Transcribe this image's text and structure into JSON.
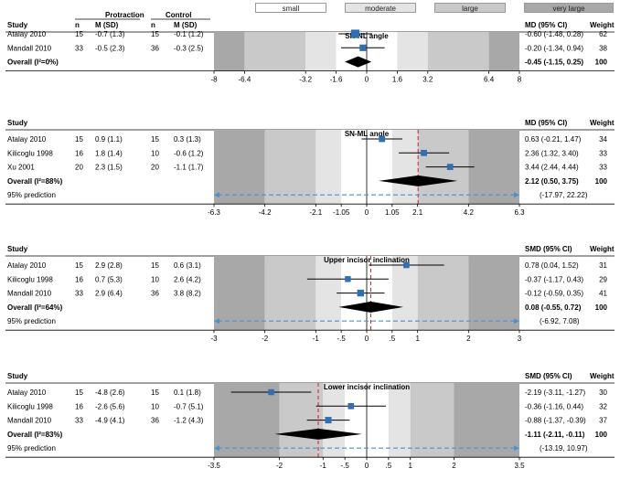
{
  "legend": {
    "items": [
      {
        "label": "small",
        "color": "#ffffff"
      },
      {
        "label": "moderate",
        "color": "#e4e4e4"
      },
      {
        "label": "large",
        "color": "#c9c9c9"
      },
      {
        "label": "very large",
        "color": "#a8a8a8"
      }
    ]
  },
  "column_headers": {
    "protraction": "Protraction",
    "control": "Control",
    "n": "n",
    "msd": "M (SD)",
    "study": "Study",
    "weight": "Weight"
  },
  "colors": {
    "marker": "#2f6fb4",
    "zero_line": "#000000",
    "pooled_line": "#d62020",
    "prediction": "#4a90d9",
    "diamond": "#000000"
  },
  "chart_data": [
    {
      "type": "forest",
      "title": "SN-NL angle",
      "effect_header": "MD (95% CI)",
      "xlim": [
        -8,
        8
      ],
      "ticks": [
        -8,
        -6.4,
        -3.2,
        -1.6,
        0,
        1.6,
        3.2,
        6.4,
        8
      ],
      "tick_labels": [
        "-8",
        "-6.4",
        "-3.2",
        "-1.6",
        "0",
        "1.6",
        "3.2",
        "6.4",
        "8"
      ],
      "zones": [
        -6.4,
        -3.2,
        -1.6,
        1.6,
        3.2,
        6.4
      ],
      "studies": [
        {
          "name": "Atalay 2010",
          "n1": "15",
          "msd1": "-0.7 (1.3)",
          "n2": "15",
          "msd2": "-0.1 (1.2)",
          "est": -0.6,
          "lo": -1.48,
          "hi": 0.28,
          "ci_text": "-0.60 (-1.48, 0.28)",
          "weight": "62"
        },
        {
          "name": "Mandall 2010",
          "n1": "33",
          "msd1": "-0.5 (2.3)",
          "n2": "36",
          "msd2": "-0.3 (2.5)",
          "est": -0.2,
          "lo": -1.34,
          "hi": 0.94,
          "ci_text": "-0.20 (-1.34, 0.94)",
          "weight": "38"
        }
      ],
      "overall": {
        "label": "Overall (I²=0%)",
        "est": -0.45,
        "lo": -1.15,
        "hi": 0.25,
        "ci_text": "-0.45 (-1.15, 0.25)",
        "weight": "100"
      }
    },
    {
      "type": "forest",
      "title": "SN-ML angle",
      "effect_header": "MD (95% CI)",
      "xlim": [
        -6.3,
        6.3
      ],
      "ticks": [
        -6.3,
        -4.2,
        -2.1,
        -1.05,
        0,
        1.05,
        2.1,
        4.2,
        6.3
      ],
      "tick_labels": [
        "-6.3",
        "-4.2",
        "-2.1",
        "-1.05",
        "0",
        "1.05",
        "2.1",
        "4.2",
        "6.3"
      ],
      "zones": [
        -4.2,
        -2.1,
        -1.05,
        1.05,
        2.1,
        4.2
      ],
      "studies": [
        {
          "name": "Atalay 2010",
          "n1": "15",
          "msd1": "0.9 (1.1)",
          "n2": "15",
          "msd2": "0.3 (1.3)",
          "est": 0.63,
          "lo": -0.21,
          "hi": 1.47,
          "ci_text": "0.63 (-0.21, 1.47)",
          "weight": "34"
        },
        {
          "name": "Kilicoglu 1998",
          "n1": "16",
          "msd1": "1.8 (1.4)",
          "n2": "10",
          "msd2": "-0.6 (1.2)",
          "est": 2.36,
          "lo": 1.32,
          "hi": 3.4,
          "ci_text": "2.36 (1.32, 3.40)",
          "weight": "33"
        },
        {
          "name": "Xu 2001",
          "n1": "20",
          "msd1": "2.3 (1.5)",
          "n2": "20",
          "msd2": "-1.1 (1.7)",
          "est": 3.44,
          "lo": 2.44,
          "hi": 4.44,
          "ci_text": "3.44 (2.44, 4.44)",
          "weight": "33"
        }
      ],
      "overall": {
        "label": "Overall (I²=88%)",
        "est": 2.12,
        "lo": 0.5,
        "hi": 3.75,
        "ci_text": "2.12 (0.50, 3.75)",
        "weight": "100"
      },
      "prediction": {
        "label": "95% prediction",
        "lo": -17.97,
        "hi": 22.22,
        "ci_text": "(-17.97, 22.22)"
      }
    },
    {
      "type": "forest",
      "title": "Upper incisor inclination",
      "effect_header": "SMD (95% CI)",
      "xlim": [
        -3,
        3
      ],
      "ticks": [
        -3,
        -2,
        -1,
        -0.5,
        0,
        0.5,
        1,
        2,
        3
      ],
      "tick_labels": [
        "-3",
        "-2",
        "-1",
        "-.5",
        "0",
        ".5",
        "1",
        "2",
        "3"
      ],
      "zones": [
        -2,
        -1,
        -0.5,
        0.5,
        1,
        2
      ],
      "studies": [
        {
          "name": "Atalay 2010",
          "n1": "15",
          "msd1": "2.9 (2.8)",
          "n2": "15",
          "msd2": "0.6 (3.1)",
          "est": 0.78,
          "lo": 0.04,
          "hi": 1.52,
          "ci_text": "0.78 (0.04, 1.52)",
          "weight": "31"
        },
        {
          "name": "Kilicoglu 1998",
          "n1": "16",
          "msd1": "0.7 (5.3)",
          "n2": "10",
          "msd2": "2.6 (4.2)",
          "est": -0.37,
          "lo": -1.17,
          "hi": 0.43,
          "ci_text": "-0.37 (-1.17, 0.43)",
          "weight": "29"
        },
        {
          "name": "Mandall 2010",
          "n1": "33",
          "msd1": "2.9 (6.4)",
          "n2": "36",
          "msd2": "3.8 (8.2)",
          "est": -0.12,
          "lo": -0.59,
          "hi": 0.35,
          "ci_text": "-0.12 (-0.59, 0.35)",
          "weight": "41"
        }
      ],
      "overall": {
        "label": "Overall (I²=64%)",
        "est": 0.08,
        "lo": -0.55,
        "hi": 0.72,
        "ci_text": "0.08 (-0.55, 0.72)",
        "weight": "100"
      },
      "prediction": {
        "label": "95% prediction",
        "lo": -6.92,
        "hi": 7.08,
        "ci_text": "(-6.92, 7.08)"
      }
    },
    {
      "type": "forest",
      "title": "Lower incisor inclination",
      "effect_header": "SMD (95% CI)",
      "xlim": [
        -3.5,
        3.5
      ],
      "ticks": [
        -3.5,
        -2,
        -1,
        -0.5,
        0,
        0.5,
        1,
        2,
        3.5
      ],
      "tick_labels": [
        "-3.5",
        "-2",
        "-1",
        "-.5",
        "0",
        ".5",
        "1",
        "2",
        "3.5"
      ],
      "zones": [
        -2,
        -1,
        -0.5,
        0.5,
        1,
        2
      ],
      "studies": [
        {
          "name": "Atalay 2010",
          "n1": "15",
          "msd1": "-4.8 (2.6)",
          "n2": "15",
          "msd2": "0.1 (1.8)",
          "est": -2.19,
          "lo": -3.11,
          "hi": -1.27,
          "ci_text": "-2.19 (-3.11, -1.27)",
          "weight": "30"
        },
        {
          "name": "Kilicoglu 1998",
          "n1": "16",
          "msd1": "-2.6 (5.6)",
          "n2": "10",
          "msd2": "-0.7 (5.1)",
          "est": -0.36,
          "lo": -1.16,
          "hi": 0.44,
          "ci_text": "-0.36 (-1.16, 0.44)",
          "weight": "32"
        },
        {
          "name": "Mandall 2010",
          "n1": "33",
          "msd1": "-4.9 (4.1)",
          "n2": "36",
          "msd2": "-1.2 (4.3)",
          "est": -0.88,
          "lo": -1.37,
          "hi": -0.39,
          "ci_text": "-0.88 (-1.37, -0.39)",
          "weight": "37"
        }
      ],
      "overall": {
        "label": "Overall (I²=83%)",
        "est": -1.11,
        "lo": -2.11,
        "hi": -0.11,
        "ci_text": "-1.11 (-2.11, -0.11)",
        "weight": "100"
      },
      "prediction": {
        "label": "95% prediction",
        "lo": -13.19,
        "hi": 10.97,
        "ci_text": "(-13.19, 10.97)"
      }
    }
  ]
}
